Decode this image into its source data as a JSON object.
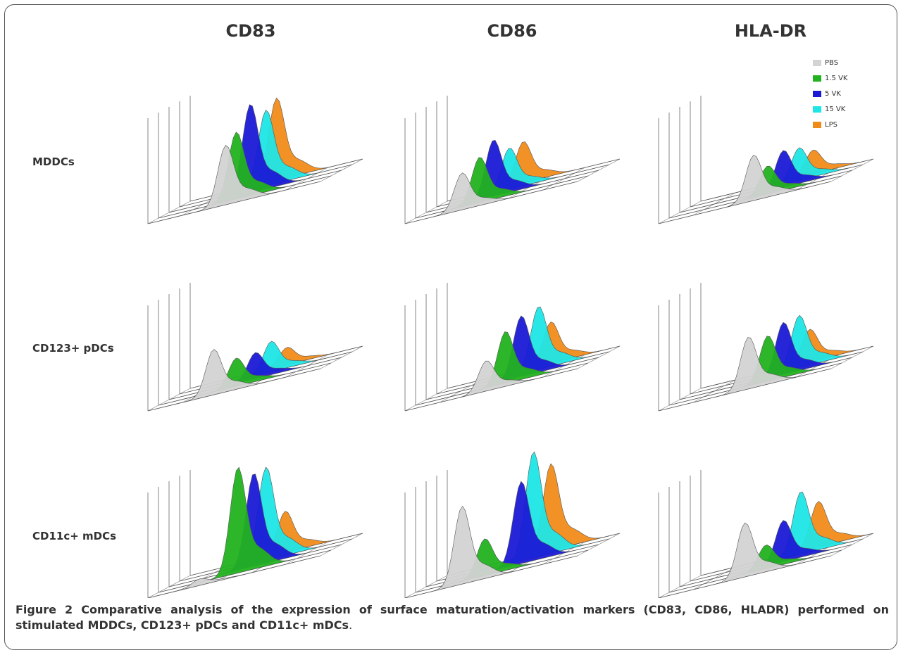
{
  "columns": [
    "CD83",
    "CD86",
    "HLA-DR"
  ],
  "rows": [
    "MDDCs",
    "CD123+ pDCs",
    "CD11c+ mDCs"
  ],
  "legend": [
    {
      "label": "PBS",
      "color": "#d3d3d3"
    },
    {
      "label": "1.5 VK",
      "color": "#22b21f"
    },
    {
      "label": "5 VK",
      "color": "#1a1ad6"
    },
    {
      "label": "15 VK",
      "color": "#1fe6e6"
    },
    {
      "label": "LPS",
      "color": "#f08b1a"
    }
  ],
  "caption": {
    "label": "Figure 2",
    "text": "Comparative analysis of the expression of surface maturation/activation markers (CD83, CD86, HLADR) performed on stimulated MDDCs, CD123+ pDCs and CD11c+ mDCs",
    "period": "."
  },
  "chart_data": {
    "type": "area",
    "description_units": "histogram peaks: position along fluorescence axis (0-1) and relative height (0-1), series in order PBS, 1.5 VK, 5 VK, 15 VK, LPS",
    "panels": [
      {
        "row": "MDDCs",
        "col": "CD83",
        "series": [
          {
            "name": "PBS",
            "peak": 0.45,
            "height": 0.55
          },
          {
            "name": "1.5 VK",
            "peak": 0.45,
            "height": 0.62
          },
          {
            "name": "5 VK",
            "peak": 0.47,
            "height": 0.82
          },
          {
            "name": "15 VK",
            "peak": 0.5,
            "height": 0.7
          },
          {
            "name": "LPS",
            "peak": 0.5,
            "height": 0.76
          }
        ]
      },
      {
        "row": "MDDCs",
        "col": "CD86",
        "series": [
          {
            "name": "PBS",
            "peak": 0.33,
            "height": 0.34
          },
          {
            "name": "1.5 VK",
            "peak": 0.37,
            "height": 0.42
          },
          {
            "name": "5 VK",
            "peak": 0.39,
            "height": 0.52
          },
          {
            "name": "15 VK",
            "peak": 0.42,
            "height": 0.38
          },
          {
            "name": "LPS",
            "peak": 0.44,
            "height": 0.38
          }
        ]
      },
      {
        "row": "MDDCs",
        "col": "HLA-DR",
        "series": [
          {
            "name": "PBS",
            "peak": 0.55,
            "height": 0.42
          },
          {
            "name": "1.5 VK",
            "peak": 0.57,
            "height": 0.26
          },
          {
            "name": "5 VK",
            "peak": 0.6,
            "height": 0.34
          },
          {
            "name": "15 VK",
            "peak": 0.63,
            "height": 0.3
          },
          {
            "name": "LPS",
            "peak": 0.65,
            "height": 0.22
          }
        ]
      },
      {
        "row": "CD123+ pDCs",
        "col": "CD83",
        "series": [
          {
            "name": "PBS",
            "peak": 0.38,
            "height": 0.42
          },
          {
            "name": "1.5 VK",
            "peak": 0.45,
            "height": 0.26
          },
          {
            "name": "5 VK",
            "peak": 0.5,
            "height": 0.24
          },
          {
            "name": "15 VK",
            "peak": 0.53,
            "height": 0.28
          },
          {
            "name": "LPS",
            "peak": 0.56,
            "height": 0.16
          }
        ]
      },
      {
        "row": "CD123+ pDCs",
        "col": "CD86",
        "series": [
          {
            "name": "PBS",
            "peak": 0.47,
            "height": 0.28
          },
          {
            "name": "1.5 VK",
            "peak": 0.52,
            "height": 0.48
          },
          {
            "name": "5 VK",
            "peak": 0.55,
            "height": 0.56
          },
          {
            "name": "15 VK",
            "peak": 0.59,
            "height": 0.58
          },
          {
            "name": "LPS",
            "peak": 0.6,
            "height": 0.38
          }
        ]
      },
      {
        "row": "CD123+ pDCs",
        "col": "HLA-DR",
        "series": [
          {
            "name": "PBS",
            "peak": 0.52,
            "height": 0.48
          },
          {
            "name": "1.5 VK",
            "peak": 0.57,
            "height": 0.42
          },
          {
            "name": "5 VK",
            "peak": 0.6,
            "height": 0.48
          },
          {
            "name": "15 VK",
            "peak": 0.63,
            "height": 0.48
          },
          {
            "name": "LPS",
            "peak": 0.63,
            "height": 0.3
          }
        ]
      },
      {
        "row": "CD11c+ mDCs",
        "col": "CD83",
        "series": [
          {
            "name": "PBS",
            "peak": 0.3,
            "height": 0.06
          },
          {
            "name": "1.5 VK",
            "peak": 0.46,
            "height": 0.98
          },
          {
            "name": "5 VK",
            "peak": 0.49,
            "height": 0.86
          },
          {
            "name": "15 VK",
            "peak": 0.5,
            "height": 0.86
          },
          {
            "name": "LPS",
            "peak": 0.55,
            "height": 0.38
          }
        ]
      },
      {
        "row": "CD11c+ mDCs",
        "col": "CD86",
        "series": [
          {
            "name": "PBS",
            "peak": 0.33,
            "height": 0.72
          },
          {
            "name": "1.5 VK",
            "peak": 0.4,
            "height": 0.34
          },
          {
            "name": "5 VK",
            "peak": 0.55,
            "height": 0.76
          },
          {
            "name": "15 VK",
            "peak": 0.56,
            "height": 0.98
          },
          {
            "name": "LPS",
            "peak": 0.6,
            "height": 0.8
          }
        ]
      },
      {
        "row": "CD11c+ mDCs",
        "col": "HLA-DR",
        "series": [
          {
            "name": "PBS",
            "peak": 0.5,
            "height": 0.5
          },
          {
            "name": "1.5 VK",
            "peak": 0.56,
            "height": 0.22
          },
          {
            "name": "5 VK",
            "peak": 0.6,
            "height": 0.38
          },
          {
            "name": "15 VK",
            "peak": 0.64,
            "height": 0.58
          },
          {
            "name": "LPS",
            "peak": 0.68,
            "height": 0.42
          }
        ]
      }
    ]
  }
}
